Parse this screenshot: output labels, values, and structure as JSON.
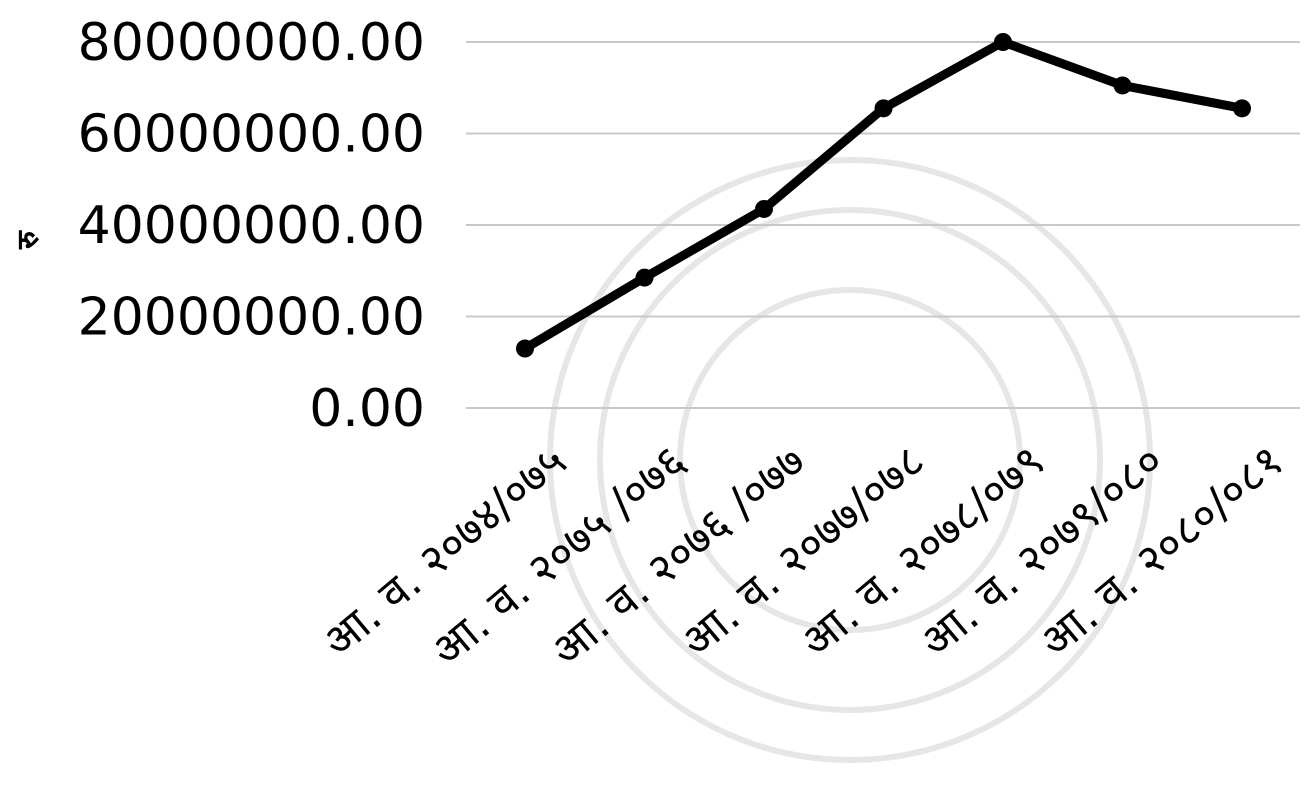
{
  "colors": {
    "line": "#000000",
    "grid": "#c8c8c8",
    "background": "#ffffff",
    "watermark": "#e6e6e6"
  },
  "chart_data": {
    "type": "line",
    "title": "",
    "xlabel": "",
    "ylabel": "रु",
    "ylim": [
      0,
      80000000
    ],
    "grid": true,
    "legend": "none",
    "categories": [
      "आ. व. २०७४/०७५",
      "आ. व. २०७५ /०७६",
      "आ. व. २०७६ /०७७",
      "आ. व. २०७७/०७८",
      "आ. व. २०७८/०७९",
      "आ. व. २०७९/०८०",
      "आ. व. २०८०/०८१"
    ],
    "y_ticks": [
      0,
      20000000,
      40000000,
      60000000,
      80000000
    ],
    "y_tick_labels": [
      "0.00",
      "20000000.00",
      "40000000.00",
      "60000000.00",
      "80000000.00"
    ],
    "series": [
      {
        "values": [
          13000000,
          28500000,
          43500000,
          65500000,
          80000000,
          70500000,
          65500000
        ]
      }
    ]
  }
}
